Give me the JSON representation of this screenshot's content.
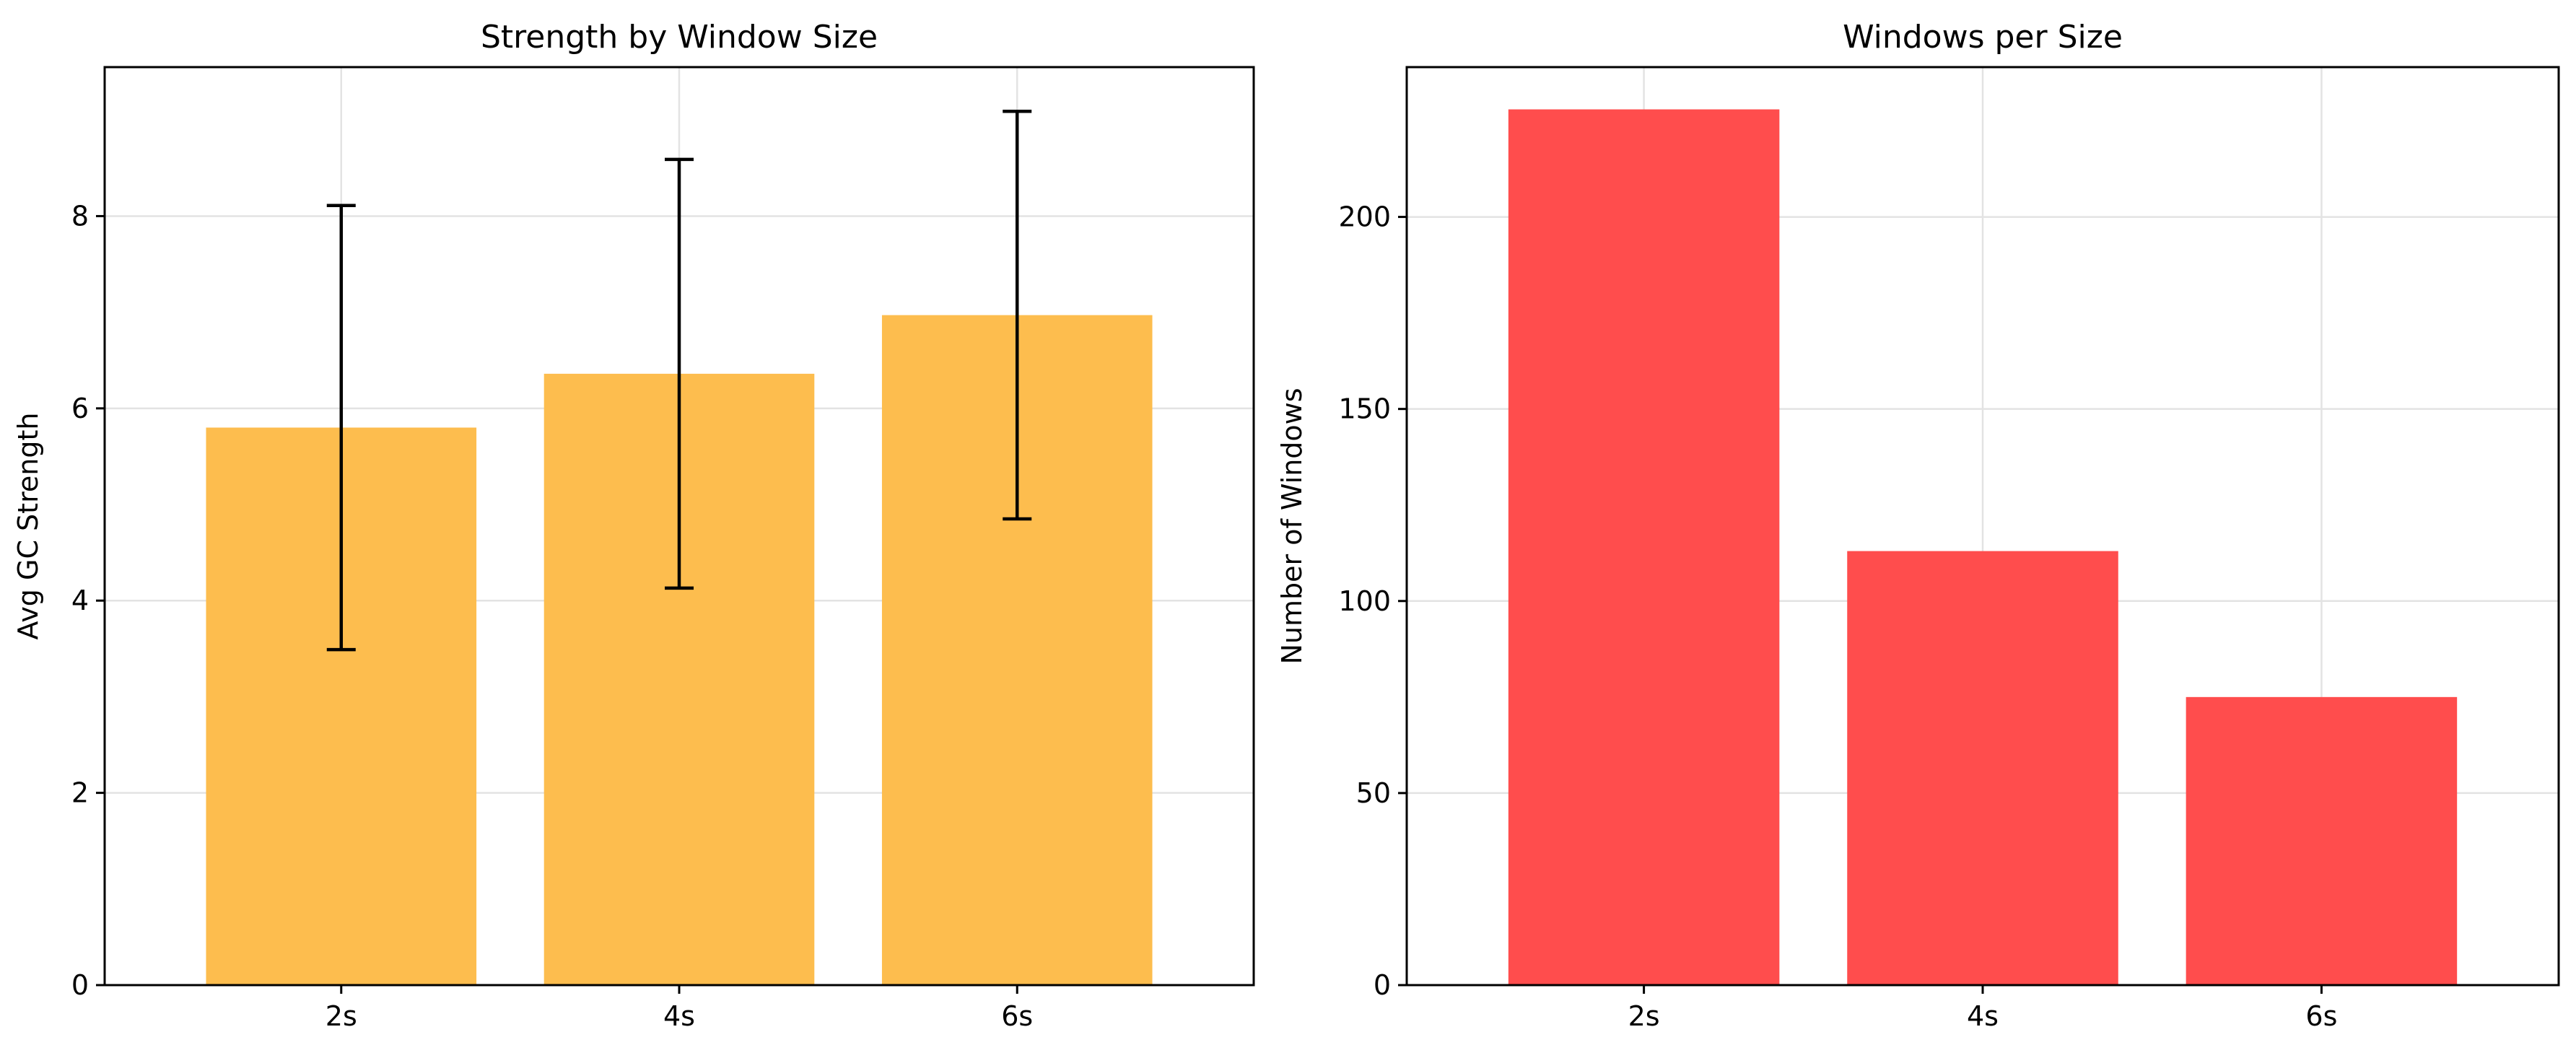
{
  "chart_data": [
    {
      "type": "bar",
      "title": "Strength by Window Size",
      "xlabel": "",
      "ylabel": "Avg GC Strength",
      "categories": [
        "2s",
        "4s",
        "6s"
      ],
      "values": [
        5.8,
        6.36,
        6.97
      ],
      "error": [
        2.31,
        2.23,
        2.12
      ],
      "ylim": [
        0,
        9.55
      ],
      "yticks": [
        0,
        2,
        4,
        6,
        8
      ],
      "color": "#fdbd4e",
      "grid": true
    },
    {
      "type": "bar",
      "title": "Windows per Size",
      "xlabel": "",
      "ylabel": "Number of Windows",
      "categories": [
        "2s",
        "4s",
        "6s"
      ],
      "values": [
        228,
        113,
        75
      ],
      "ylim": [
        0,
        239
      ],
      "yticks": [
        0,
        50,
        100,
        150,
        200
      ],
      "color": "#ff4d4d",
      "grid": true
    }
  ]
}
